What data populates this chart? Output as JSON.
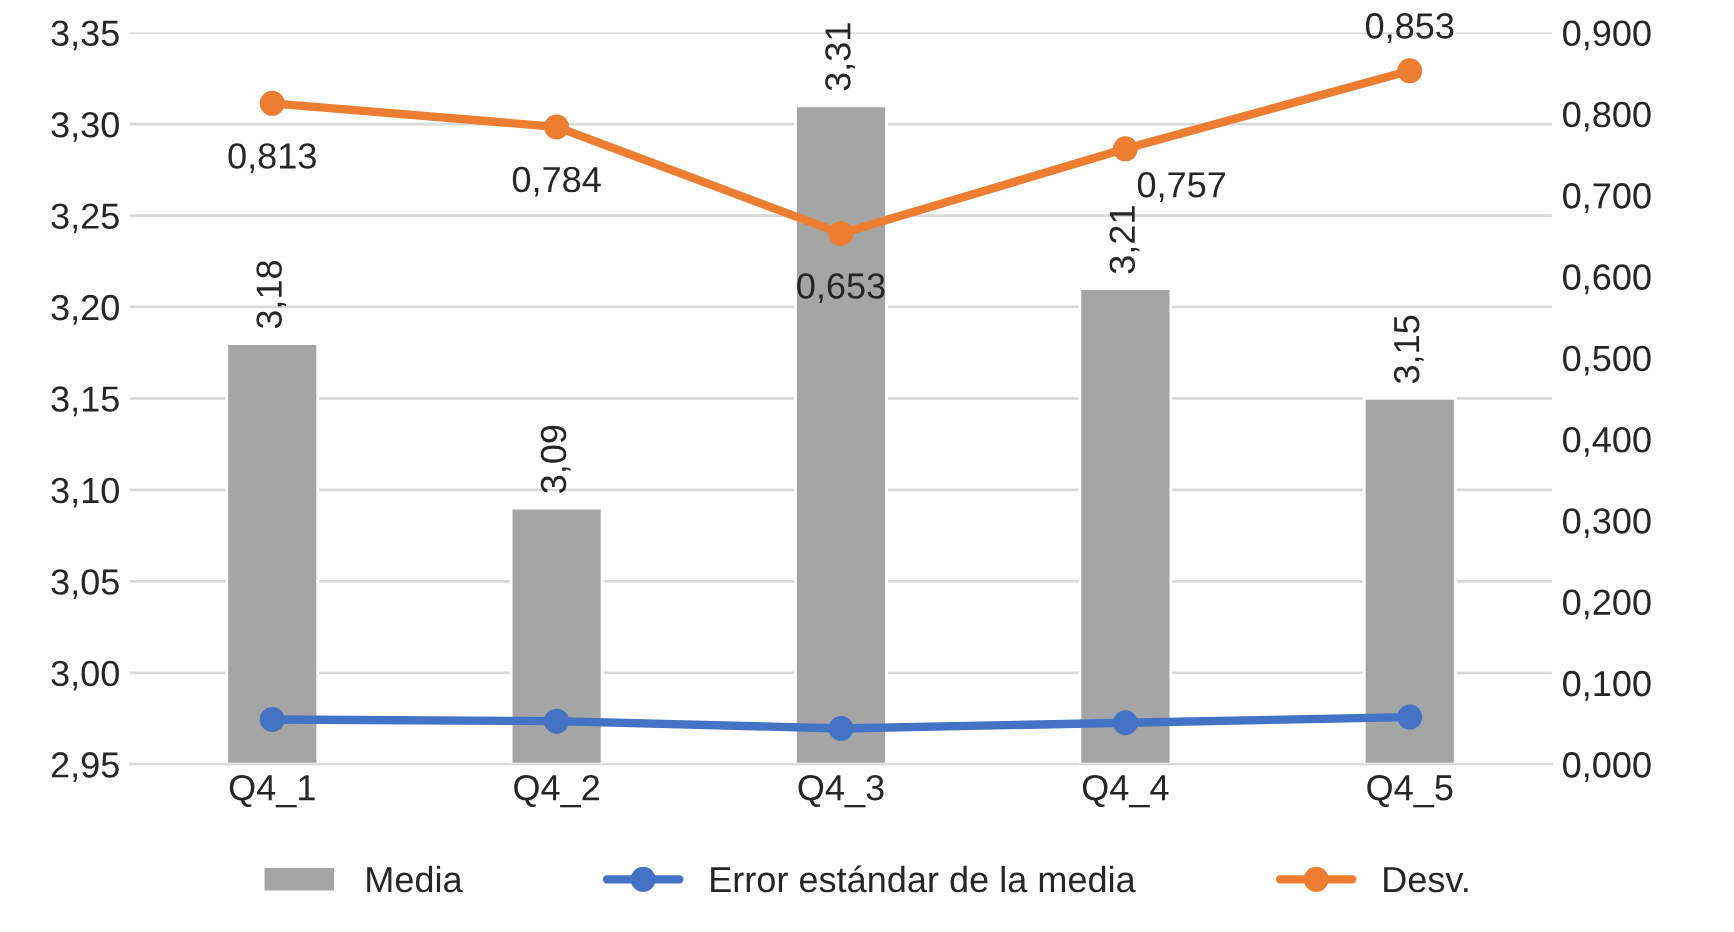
{
  "chart_data": {
    "type": "bar",
    "categories": [
      "Q4_1",
      "Q4_2",
      "Q4_3",
      "Q4_4",
      "Q4_5"
    ],
    "series": [
      {
        "name": "Media",
        "color": "#a5a5a5",
        "values": [
          3.18,
          3.09,
          3.31,
          3.21,
          3.15
        ],
        "value_labels": [
          "3,18",
          "3,09",
          "3,31",
          "3,21",
          "3,15"
        ]
      },
      {
        "name": "Error estándar de la media",
        "type": "line",
        "axis": "y2",
        "color": "#4472c4",
        "values": [
          0.055,
          0.053,
          0.044,
          0.051,
          0.058
        ]
      },
      {
        "name": "Desv.",
        "type": "line",
        "axis": "y2",
        "color": "#ed7d31",
        "values": [
          0.813,
          0.784,
          0.653,
          0.757,
          0.853
        ],
        "value_labels": [
          "0,813",
          "0,784",
          "0,653",
          "0,757",
          "0,853"
        ]
      }
    ],
    "ylim": [
      2.95,
      3.35
    ],
    "yticks": [
      {
        "value": 2.95,
        "label": "2,95"
      },
      {
        "value": 3.0,
        "label": "3,00"
      },
      {
        "value": 3.05,
        "label": "3,05"
      },
      {
        "value": 3.1,
        "label": "3,10"
      },
      {
        "value": 3.15,
        "label": "3,15"
      },
      {
        "value": 3.2,
        "label": "3,20"
      },
      {
        "value": 3.25,
        "label": "3,25"
      },
      {
        "value": 3.3,
        "label": "3,30"
      },
      {
        "value": 3.35,
        "label": "3,35"
      }
    ],
    "y2lim": [
      0,
      0.9
    ],
    "y2ticks": [
      {
        "value": 0,
        "label": "0,000"
      },
      {
        "value": 0.1,
        "label": "0,100"
      },
      {
        "value": 0.2,
        "label": "0,200"
      },
      {
        "value": 0.3,
        "label": "0,300"
      },
      {
        "value": 0.4,
        "label": "0,400"
      },
      {
        "value": 0.5,
        "label": "0,500"
      },
      {
        "value": 0.6,
        "label": "0,600"
      },
      {
        "value": 0.7,
        "label": "0,700"
      },
      {
        "value": 0.8,
        "label": "0,800"
      },
      {
        "value": 0.9,
        "label": "0,900"
      }
    ],
    "grid": "y",
    "legend": "bottom",
    "marker": "circle",
    "line_style": "solid"
  }
}
